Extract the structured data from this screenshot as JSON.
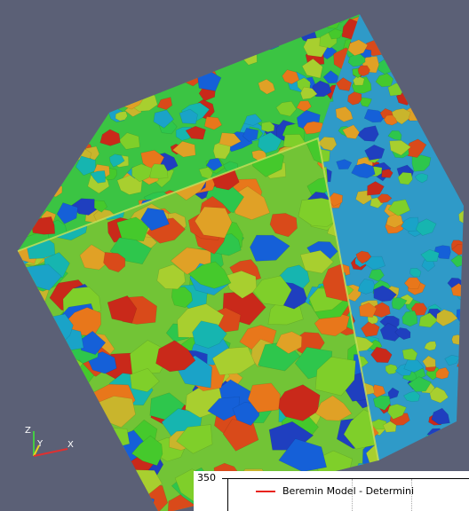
{
  "viewport": {
    "background": "#5b6076",
    "grain_palette": [
      "#1f3fbf",
      "#1560d8",
      "#1aa3c8",
      "#16b5b0",
      "#2ec64c",
      "#45c92c",
      "#7fcf2a",
      "#a8cf2f",
      "#c9b52c",
      "#e0a126",
      "#e8771b",
      "#d94a1a",
      "#c9291a"
    ]
  },
  "orientation_axes": {
    "z_label": "Z",
    "y_label": "Y",
    "x_label": "X",
    "z_color": "#44cc44",
    "y_color": "#e8d51e",
    "x_color": "#e03030"
  },
  "plot_inset": {
    "y_tick_label": "350",
    "legend_label": "Beremin Model - Determini",
    "legend_color": "#e8231d"
  }
}
